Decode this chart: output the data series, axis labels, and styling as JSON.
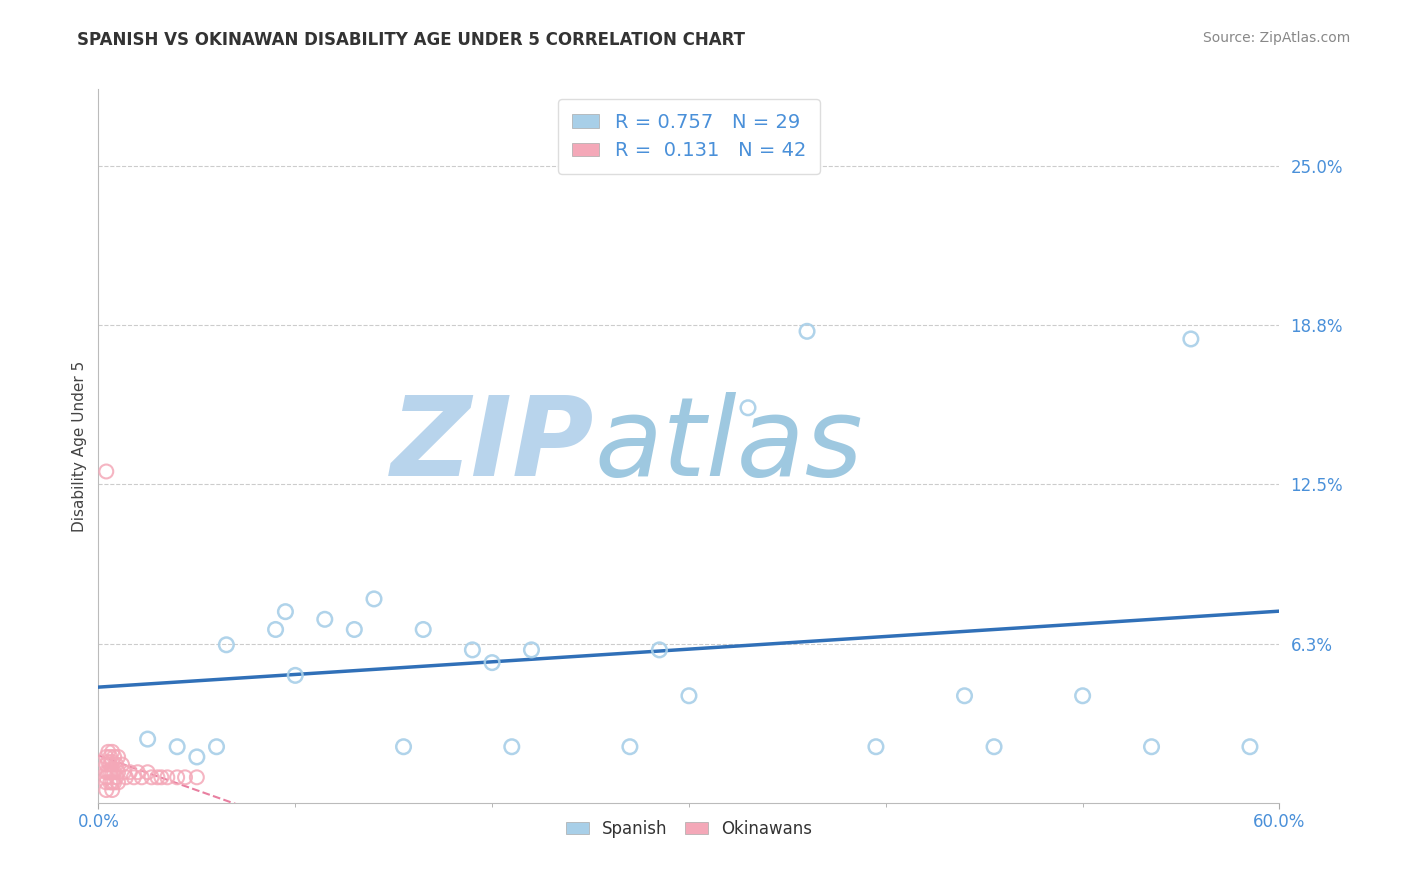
{
  "title": "SPANISH VS OKINAWAN DISABILITY AGE UNDER 5 CORRELATION CHART",
  "source_text": "Source: ZipAtlas.com",
  "ylabel": "Disability Age Under 5",
  "xlim": [
    0.0,
    0.6
  ],
  "ylim": [
    0.0,
    0.28
  ],
  "spanish_R": 0.757,
  "spanish_N": 29,
  "okinawan_R": 0.131,
  "okinawan_N": 42,
  "spanish_color": "#a8cfe8",
  "okinawan_color": "#f4a8b8",
  "regression_line_color": "#3070b8",
  "okinawan_line_color": "#e87fa0",
  "watermark_color_zip": "#b8d4ec",
  "watermark_color_atlas": "#9ec8e0",
  "watermark_text_zip": "ZIP",
  "watermark_text_atlas": "atlas",
  "background_color": "#ffffff",
  "grid_color": "#cccccc",
  "spanish_x": [
    0.025,
    0.04,
    0.05,
    0.06,
    0.065,
    0.09,
    0.095,
    0.1,
    0.115,
    0.13,
    0.14,
    0.155,
    0.165,
    0.19,
    0.2,
    0.21,
    0.22,
    0.27,
    0.285,
    0.3,
    0.33,
    0.36,
    0.395,
    0.44,
    0.455,
    0.5,
    0.535,
    0.555,
    0.585
  ],
  "spanish_y": [
    0.025,
    0.022,
    0.018,
    0.022,
    0.062,
    0.068,
    0.075,
    0.05,
    0.072,
    0.068,
    0.08,
    0.022,
    0.068,
    0.06,
    0.055,
    0.022,
    0.06,
    0.022,
    0.06,
    0.042,
    0.155,
    0.185,
    0.022,
    0.042,
    0.022,
    0.042,
    0.022,
    0.182,
    0.022
  ],
  "okinawan_x": [
    0.004,
    0.004,
    0.004,
    0.004,
    0.004,
    0.005,
    0.005,
    0.005,
    0.006,
    0.006,
    0.006,
    0.006,
    0.007,
    0.007,
    0.007,
    0.007,
    0.007,
    0.008,
    0.008,
    0.008,
    0.009,
    0.009,
    0.01,
    0.01,
    0.01,
    0.012,
    0.013,
    0.014,
    0.016,
    0.018,
    0.02,
    0.022,
    0.025,
    0.027,
    0.03,
    0.032,
    0.035,
    0.04,
    0.044,
    0.05,
    0.004,
    0.004
  ],
  "okinawan_y": [
    0.018,
    0.015,
    0.012,
    0.01,
    0.008,
    0.02,
    0.016,
    0.012,
    0.018,
    0.015,
    0.012,
    0.008,
    0.02,
    0.016,
    0.012,
    0.008,
    0.005,
    0.018,
    0.012,
    0.008,
    0.015,
    0.01,
    0.018,
    0.012,
    0.008,
    0.015,
    0.012,
    0.01,
    0.012,
    0.01,
    0.012,
    0.01,
    0.012,
    0.01,
    0.01,
    0.01,
    0.01,
    0.01,
    0.01,
    0.01,
    0.13,
    0.005
  ],
  "ytick_vals": [
    0.0625,
    0.125,
    0.1875,
    0.25
  ],
  "ytick_labels": [
    "6.3%",
    "12.5%",
    "18.8%",
    "25.0%"
  ]
}
